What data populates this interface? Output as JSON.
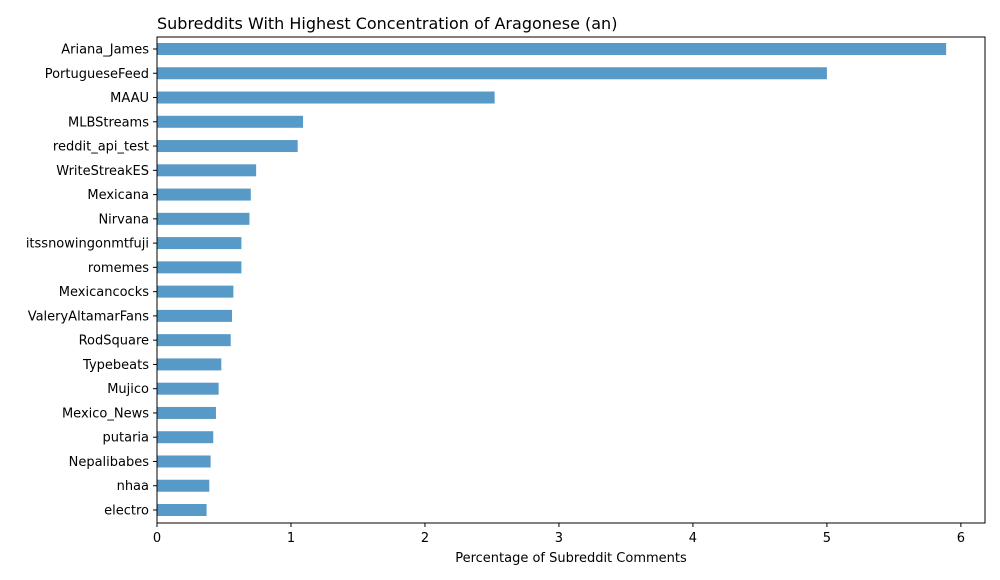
{
  "chart_data": {
    "type": "bar",
    "orientation": "horizontal",
    "title": "Subreddits With Highest Concentration of Aragonese (an)",
    "xlabel": "Percentage of Subreddit Comments",
    "ylabel": "",
    "xlim": [
      0,
      6.18
    ],
    "xticks": [
      0,
      1,
      2,
      3,
      4,
      5,
      6
    ],
    "grid": false,
    "bar_color": "#5799c7",
    "categories": [
      "Ariana_James",
      "PortugueseFeed",
      "MAAU",
      "MLBStreams",
      "reddit_api_test",
      "WriteStreakES",
      "Mexicana",
      "Nirvana",
      "itssnowingonmtfuji",
      "romemes",
      "Mexicancocks",
      "ValeryAltamarFans",
      "RodSquare",
      "Typebeats",
      "Mujico",
      "Mexico_News",
      "putaria",
      "Nepalibabes",
      "nhaa",
      "electro"
    ],
    "values": [
      5.89,
      5.0,
      2.52,
      1.09,
      1.05,
      0.74,
      0.7,
      0.69,
      0.63,
      0.63,
      0.57,
      0.56,
      0.55,
      0.48,
      0.46,
      0.44,
      0.42,
      0.4,
      0.39,
      0.37
    ]
  }
}
